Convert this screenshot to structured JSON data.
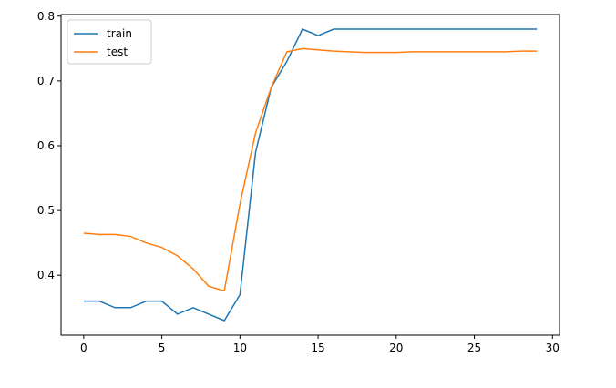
{
  "chart_data": {
    "type": "line",
    "x": [
      0,
      1,
      2,
      3,
      4,
      5,
      6,
      7,
      8,
      9,
      10,
      11,
      12,
      13,
      14,
      15,
      16,
      17,
      18,
      19,
      20,
      21,
      22,
      23,
      24,
      25,
      26,
      27,
      28,
      29
    ],
    "series": [
      {
        "name": "train",
        "color": "#1f77b4",
        "values": [
          0.36,
          0.36,
          0.35,
          0.35,
          0.36,
          0.36,
          0.34,
          0.35,
          0.34,
          0.33,
          0.37,
          0.59,
          0.69,
          0.73,
          0.78,
          0.77,
          0.78,
          0.78,
          0.78,
          0.78,
          0.78,
          0.78,
          0.78,
          0.78,
          0.78,
          0.78,
          0.78,
          0.78,
          0.78,
          0.78
        ]
      },
      {
        "name": "test",
        "color": "#ff7f0e",
        "values": [
          0.465,
          0.463,
          0.463,
          0.46,
          0.45,
          0.443,
          0.43,
          0.41,
          0.383,
          0.376,
          0.51,
          0.62,
          0.69,
          0.745,
          0.75,
          0.748,
          0.746,
          0.745,
          0.744,
          0.744,
          0.744,
          0.745,
          0.745,
          0.745,
          0.745,
          0.745,
          0.745,
          0.745,
          0.746,
          0.746
        ]
      }
    ],
    "xlim": [
      -1.45,
      30.45
    ],
    "xticks": [
      0,
      5,
      10,
      15,
      20,
      25,
      30
    ],
    "ylim": [
      0.3075,
      0.8025
    ],
    "yticks": [
      0.4,
      0.5,
      0.6,
      0.7,
      0.8
    ],
    "legend": "upper left"
  }
}
